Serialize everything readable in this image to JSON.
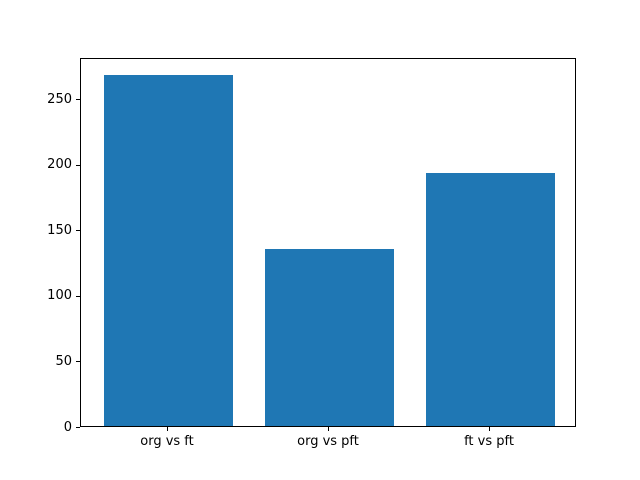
{
  "figure": {
    "background": "#ffffff"
  },
  "chart_data": {
    "type": "bar",
    "categories": [
      "org vs ft",
      "org vs pft",
      "ft vs pft"
    ],
    "values": [
      268,
      135,
      193
    ],
    "title": "",
    "xlabel": "",
    "ylabel": "",
    "ylim": [
      0,
      281.4
    ],
    "xlim": [
      -0.54,
      2.54
    ],
    "yticks": [
      0,
      50,
      100,
      150,
      200,
      250
    ],
    "bar_width_fraction": 0.8,
    "bar_color": "#1f77b4",
    "spine_color": "#000000",
    "tick_label_color": "#000000",
    "grid": false,
    "legend": "none"
  }
}
